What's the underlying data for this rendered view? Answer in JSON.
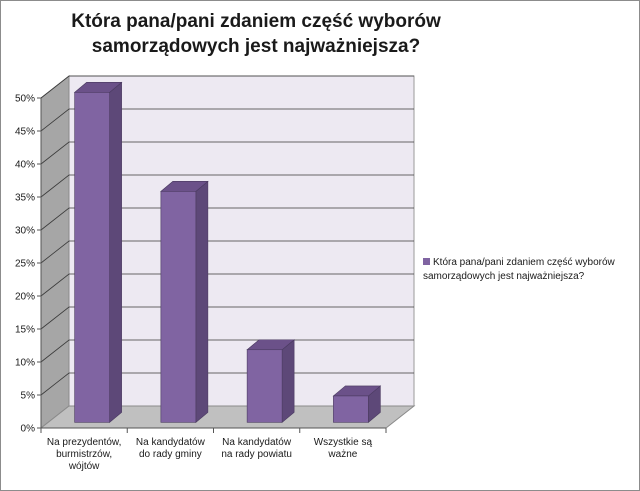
{
  "chart_data": {
    "type": "bar",
    "title": "Która pana/pani zdaniem część wyborów samorządowych jest najważniejsza?",
    "categories": [
      [
        "Na prezydentów,",
        "burmistrzów,",
        "wójtów"
      ],
      [
        "Na kandydatów",
        "do rady gminy"
      ],
      [
        "Na kandydatów",
        "na rady powiatu"
      ],
      [
        "Wszystkie są",
        "ważne"
      ]
    ],
    "series": [
      {
        "name": "Która pana/pani  zdaniem część wyborów samorządowych jest najważniejsza?",
        "values": [
          50,
          35,
          11,
          4
        ]
      }
    ],
    "y_ticks": [
      "0%",
      "5%",
      "10%",
      "15%",
      "20%",
      "25%",
      "30%",
      "35%",
      "40%",
      "45%",
      "50%"
    ],
    "ylim": [
      0,
      50
    ],
    "grid": true,
    "legend_position": "right",
    "colors": {
      "bar_front": "#8064a2",
      "bar_side": "#5d4878",
      "bar_top": "#6b5189",
      "wall": "#ede9f2",
      "floor": "#c0c0c0",
      "side_wall": "#a6a6a6"
    }
  }
}
